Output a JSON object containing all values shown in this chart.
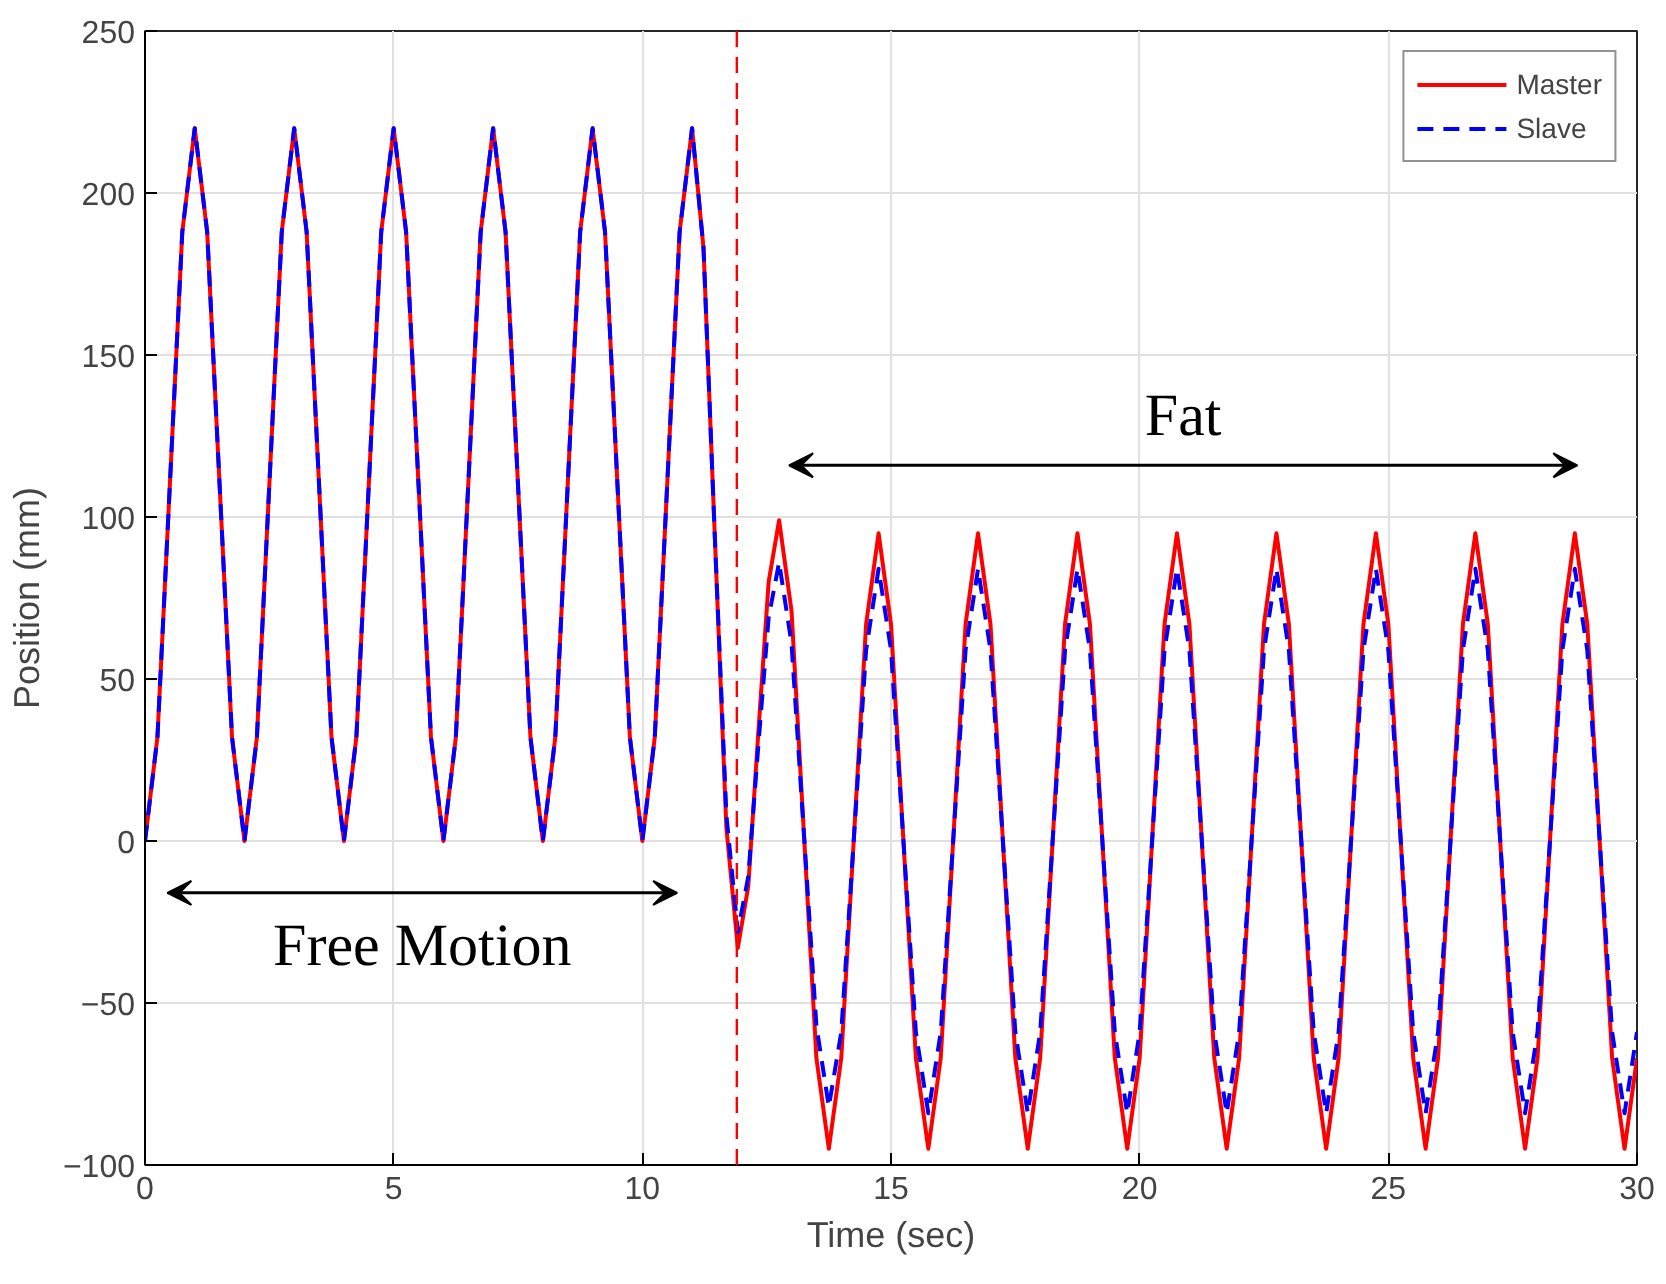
{
  "chart_data": {
    "type": "line",
    "xlabel": "Time (sec)",
    "ylabel": "Position (mm)",
    "xlim": [
      0,
      30
    ],
    "ylim": [
      -100,
      250
    ],
    "xticks": [
      0,
      5,
      10,
      15,
      20,
      25,
      30
    ],
    "yticks": [
      -100,
      -50,
      0,
      50,
      100,
      150,
      200,
      250
    ],
    "grid": true,
    "legend": "top right",
    "x": [
      0,
      0.25,
      0.5,
      0.75,
      1,
      1.25,
      1.5,
      1.75,
      2,
      2.25,
      2.5,
      2.75,
      3,
      3.25,
      3.5,
      3.75,
      4,
      4.25,
      4.5,
      4.75,
      5,
      5.25,
      5.5,
      5.75,
      6,
      6.25,
      6.5,
      6.75,
      7,
      7.25,
      7.5,
      7.75,
      8,
      8.25,
      8.5,
      8.75,
      9,
      9.25,
      9.5,
      9.75,
      10,
      10.25,
      10.5,
      10.75,
      11,
      11.23,
      11.46,
      11.69,
      11.92,
      12.13,
      12.33,
      12.54,
      12.75,
      13,
      13.25,
      13.5,
      13.75,
      14,
      14.25,
      14.5,
      14.75,
      15,
      15.25,
      15.5,
      15.75,
      16,
      16.25,
      16.5,
      16.75,
      17,
      17.25,
      17.5,
      17.75,
      18,
      18.25,
      18.5,
      18.75,
      19,
      19.25,
      19.5,
      19.75,
      20,
      20.25,
      20.5,
      20.75,
      21,
      21.25,
      21.5,
      21.75,
      22,
      22.25,
      22.5,
      22.75,
      23,
      23.25,
      23.5,
      23.75,
      24,
      24.25,
      24.5,
      24.75,
      25,
      25.25,
      25.5,
      25.75,
      26,
      26.25,
      26.5,
      26.75,
      27,
      27.25,
      27.5,
      27.75,
      28,
      28.25,
      28.5,
      28.75,
      29,
      29.25,
      29.5,
      29.75,
      30
    ],
    "series": [
      {
        "name": "Master",
        "color": "#ff0000",
        "line_style": "solid",
        "values": [
          0,
          32,
          110,
          188,
          220,
          188,
          110,
          32,
          0,
          32,
          110,
          188,
          220,
          188,
          110,
          32,
          0,
          32,
          110,
          188,
          220,
          188,
          110,
          32,
          0,
          32,
          110,
          188,
          220,
          188,
          110,
          32,
          0,
          32,
          110,
          188,
          220,
          188,
          110,
          32,
          0,
          32,
          110,
          188,
          220,
          183,
          93,
          4,
          -33,
          -14,
          33,
          80,
          99,
          71,
          2,
          -67,
          -95,
          -67,
          0,
          67,
          95,
          67,
          0,
          -67,
          -95,
          -67,
          0,
          67,
          95,
          67,
          0,
          -67,
          -95,
          -67,
          0,
          67,
          95,
          67,
          0,
          -67,
          -95,
          -67,
          0,
          67,
          95,
          67,
          0,
          -67,
          -95,
          -67,
          0,
          67,
          95,
          67,
          0,
          -67,
          -95,
          -67,
          0,
          67,
          95,
          67,
          0,
          -67,
          -95,
          -67,
          0,
          67,
          95,
          67,
          0,
          -67,
          -95,
          -67,
          0,
          67,
          95,
          67,
          0,
          -67,
          -95,
          -67
        ]
      },
      {
        "name": "Slave",
        "color": "#0000ff",
        "line_style": "dashed",
        "values": [
          0,
          32,
          110,
          188,
          220,
          188,
          110,
          32,
          0,
          32,
          110,
          188,
          220,
          188,
          110,
          32,
          0,
          32,
          110,
          188,
          220,
          188,
          110,
          32,
          0,
          32,
          110,
          188,
          220,
          188,
          110,
          32,
          0,
          32,
          110,
          188,
          220,
          188,
          110,
          32,
          0,
          32,
          110,
          188,
          220,
          183,
          93,
          8,
          -28,
          -11,
          29,
          69,
          86,
          61,
          2,
          -57,
          -82,
          -59,
          0,
          59,
          84,
          59,
          0,
          -59,
          -84,
          -59,
          0,
          59,
          84,
          59,
          0,
          -59,
          -84,
          -59,
          0,
          59,
          84,
          59,
          0,
          -59,
          -84,
          -59,
          0,
          59,
          84,
          59,
          0,
          -59,
          -84,
          -59,
          0,
          59,
          84,
          59,
          0,
          -59,
          -84,
          -59,
          0,
          59,
          84,
          59,
          0,
          -59,
          -84,
          -59,
          0,
          59,
          84,
          59,
          0,
          -59,
          -84,
          -59,
          0,
          59,
          84,
          59,
          0,
          -59,
          -84,
          -59
        ]
      }
    ],
    "ref_lines": [
      {
        "axis": "x",
        "value": 11.9,
        "color": "#ff0000",
        "line_style": "dashed"
      }
    ],
    "annotations": [
      "Free Motion",
      "Fat"
    ]
  }
}
